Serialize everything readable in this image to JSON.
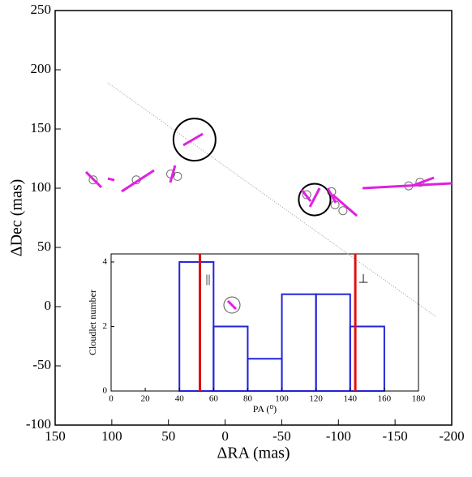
{
  "chart_data": [
    {
      "type": "scatter",
      "x_label": "ΔRA (mas)",
      "y_label": "ΔDec (mas)",
      "xlim": [
        150,
        -200
      ],
      "ylim": [
        -100,
        250
      ],
      "xticks": [
        150,
        100,
        50,
        0,
        -50,
        -100,
        -150,
        -200
      ],
      "yticks": [
        -100,
        -50,
        0,
        50,
        100,
        150,
        200,
        250
      ],
      "points": {
        "color": "#707070",
        "x": [
          116.4,
          78.4,
          48,
          42,
          -72,
          -94,
          -97,
          -104,
          -162,
          -172
        ],
        "y": [
          107,
          107,
          112,
          110,
          94.5,
          97,
          86,
          81,
          102,
          105
        ]
      },
      "vectors": {
        "color": "#e020e0",
        "x1": [
          122.8,
          103.5,
          91.3,
          48.4,
          36.9,
          -67.6,
          -74.8,
          -90.5,
          -94.8,
          -121.3,
          -165
        ],
        "y1": [
          113.7,
          108.2,
          97.3,
          104.8,
          136.3,
          98.6,
          84.2,
          100,
          94.5,
          100,
          102
        ],
        "x2": [
          109.2,
          97.7,
          62.7,
          44.1,
          19.7,
          -75.5,
          -83.4,
          -97.7,
          -116.3,
          -200,
          -184.3
        ],
        "y2": [
          100.7,
          106.8,
          115.1,
          119.2,
          145.9,
          89.0,
          100,
          87.7,
          76.7,
          104.1,
          108.9
        ]
      },
      "big_circles": {
        "color": "#000000",
        "x": [
          27,
          -79
        ],
        "y": [
          141,
          90.4
        ],
        "r": [
          18.6,
          14
        ]
      },
      "reference_line": {
        "color": "#999999",
        "x": [
          103.5,
          -185.7
        ],
        "y": [
          189,
          -8.2
        ]
      }
    },
    {
      "type": "histogram",
      "x_label": "PA (⁰)",
      "y_label": "Cloudlet number",
      "bins": [
        40,
        60,
        80,
        100,
        120,
        140,
        160
      ],
      "counts": [
        4,
        2,
        1,
        3,
        3,
        2
      ],
      "color": "#2323d8",
      "xlim": [
        0,
        180
      ],
      "ylim": [
        0,
        4.25
      ],
      "xticks": [
        0,
        20,
        40,
        60,
        80,
        100,
        120,
        140,
        160,
        180
      ],
      "yticks": [
        0,
        2,
        4
      ],
      "reference_lines": {
        "color": "#e01010",
        "x": [
          52,
          143
        ],
        "labels": [
          "||",
          "⊥"
        ]
      }
    }
  ]
}
